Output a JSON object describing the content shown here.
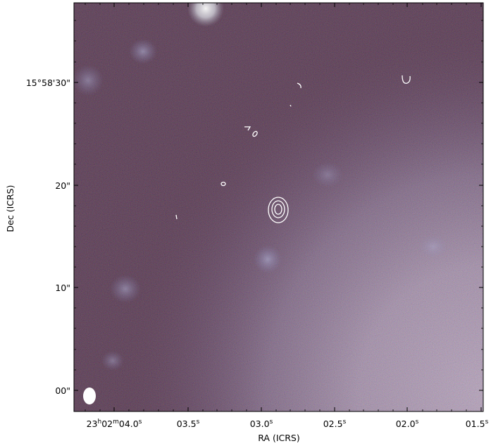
{
  "figure": {
    "x_axis_label": "RA (ICRS)",
    "y_axis_label": "Dec (ICRS)",
    "x_ticks": [
      {
        "label": "23h02m04.0s",
        "main": "23",
        "h": "h",
        "mid": "02",
        "m": "m",
        "sec": "04.0",
        "s": "s"
      },
      {
        "label": "03.5s",
        "main": "03.5",
        "s": "s"
      },
      {
        "label": "03.0s",
        "main": "03.0",
        "s": "s"
      },
      {
        "label": "02.5s",
        "main": "02.5",
        "s": "s"
      },
      {
        "label": "02.0s",
        "main": "02.0",
        "s": "s"
      },
      {
        "label": "01.5s",
        "main": "01.5",
        "s": "s"
      }
    ],
    "y_ticks": [
      {
        "label": "15°58'30\""
      },
      {
        "label": "20\""
      },
      {
        "label": "10\""
      },
      {
        "label": "00\""
      }
    ],
    "colors": {
      "frame": "#000000",
      "contours": "#ffffff",
      "beam": "#ffffff",
      "sky_background": "#3a2330",
      "galaxy_light": "#a9a6b6"
    }
  }
}
